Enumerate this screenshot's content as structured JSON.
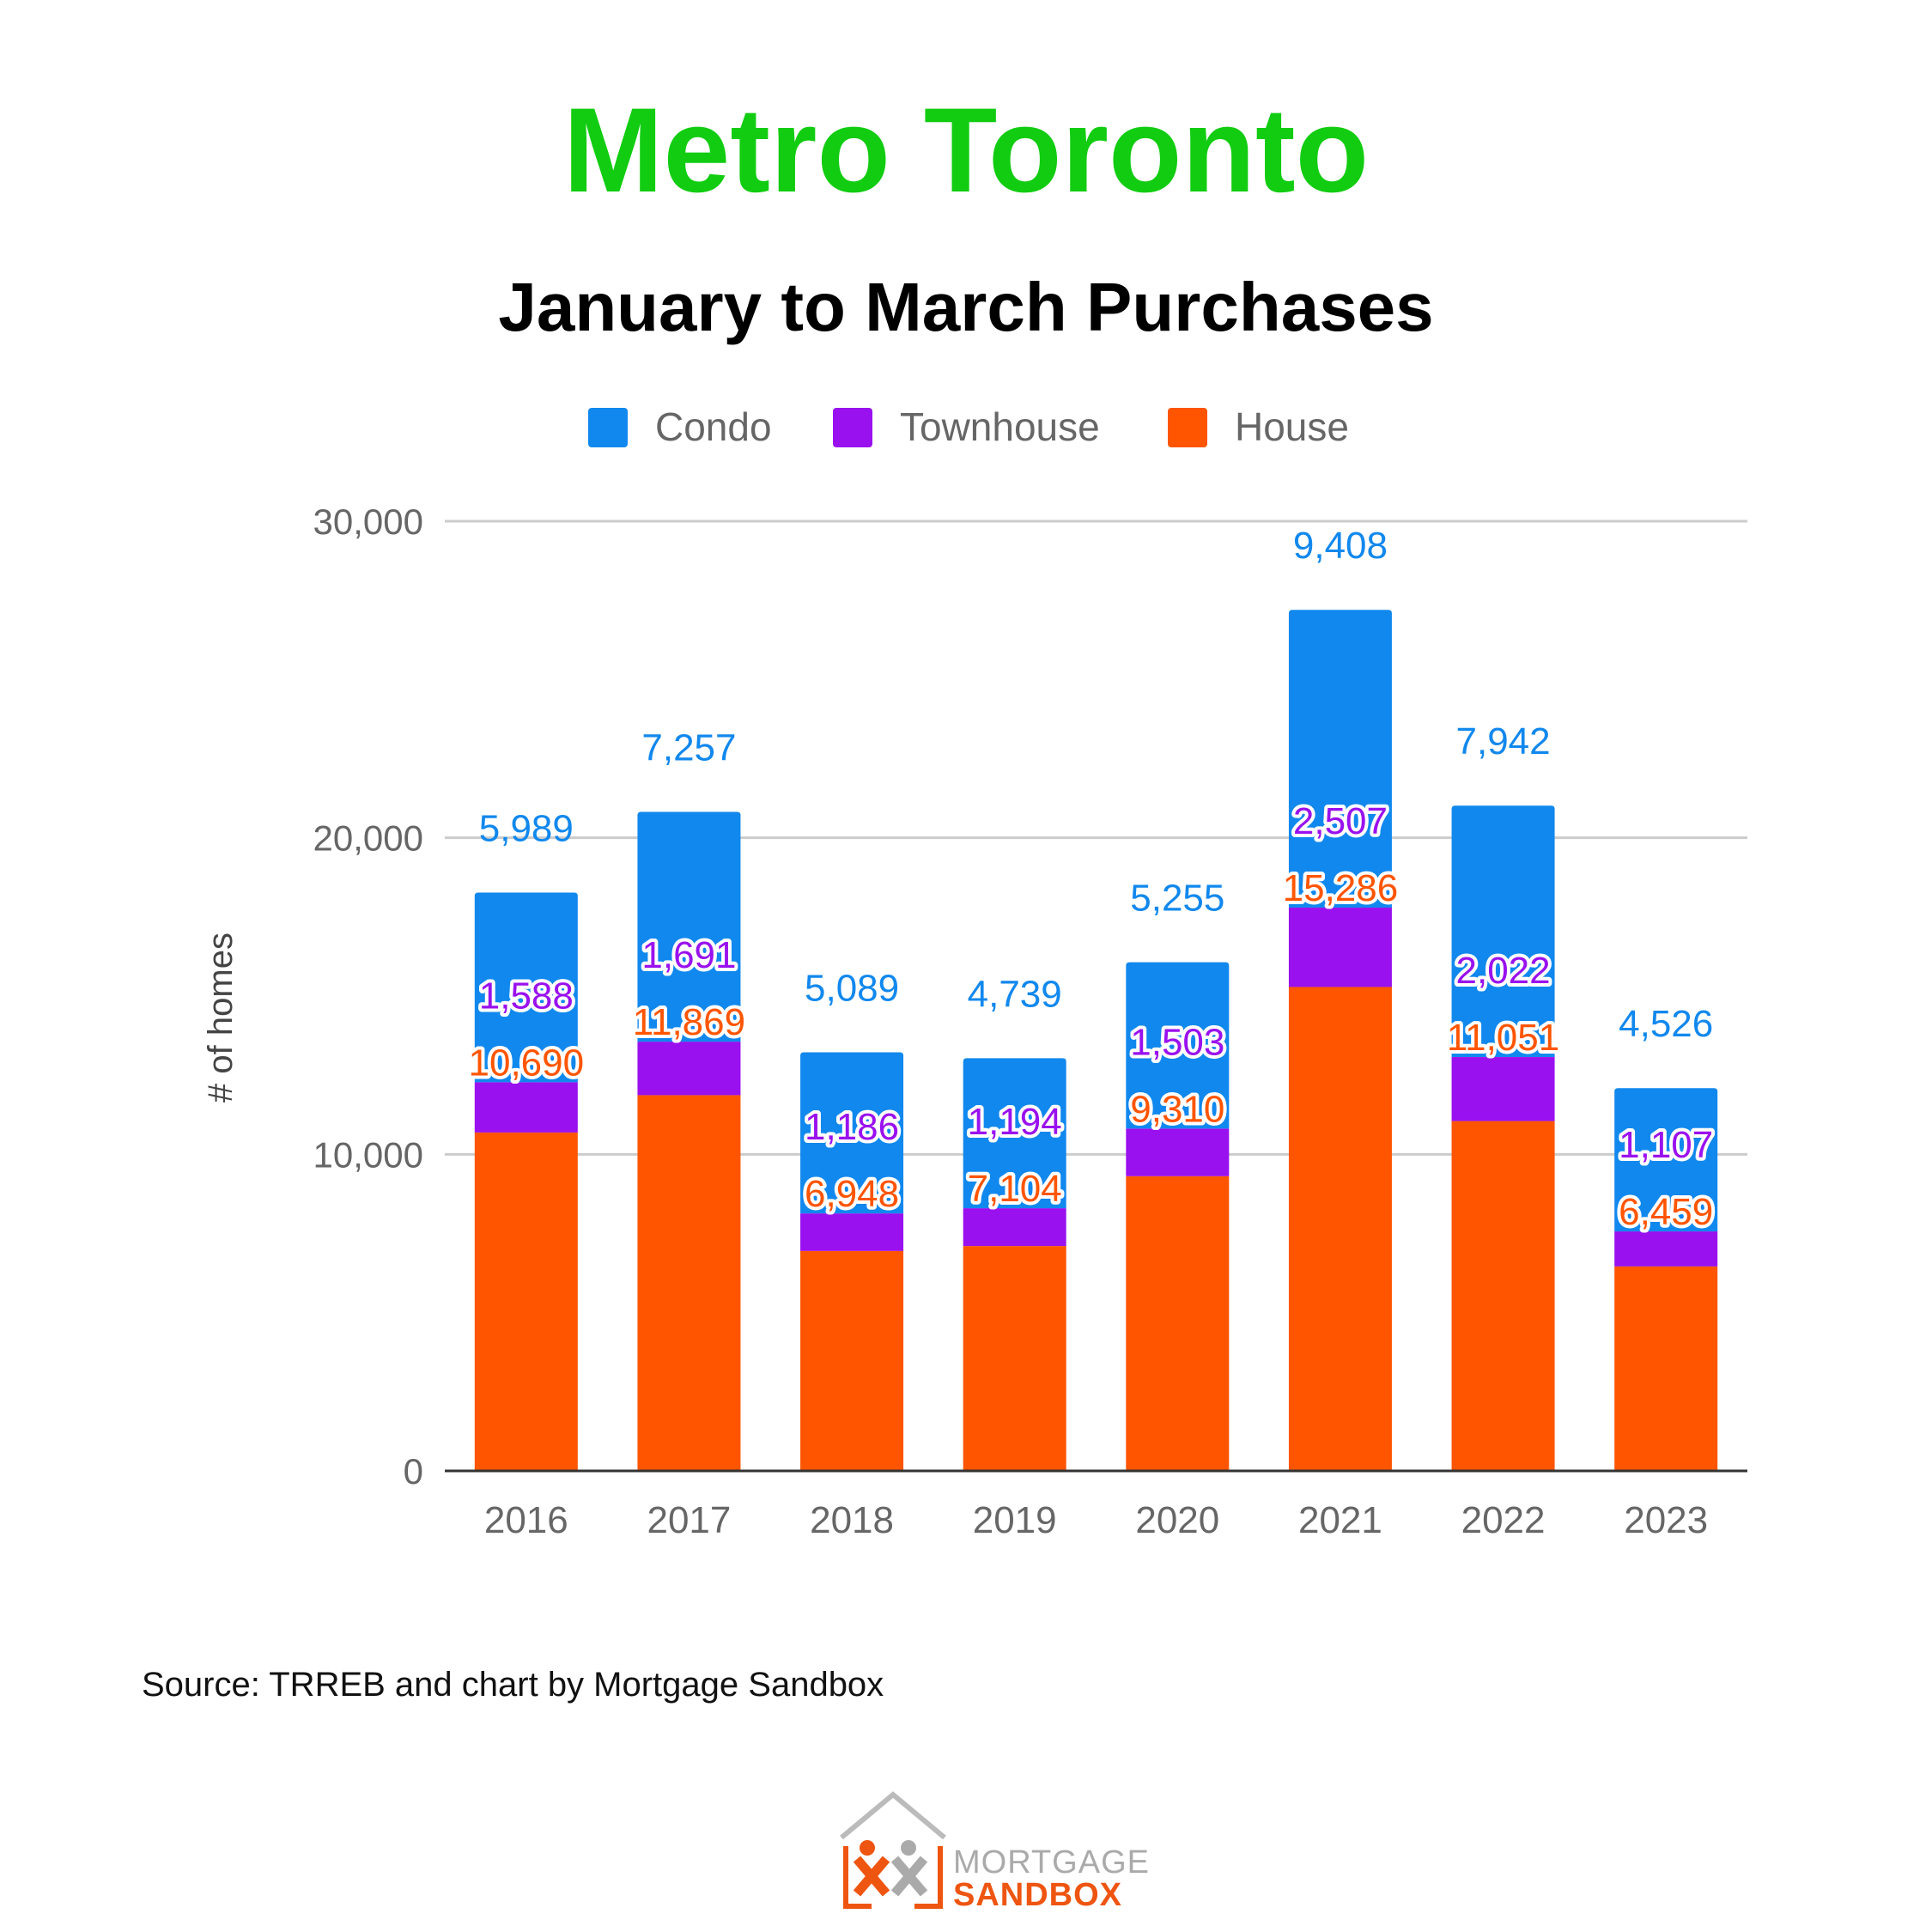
{
  "chart_data": {
    "type": "bar",
    "stacked": true,
    "title": "Metro Toronto",
    "subtitle": "January to March Purchases",
    "ylabel": "# of homes",
    "xlabel": "",
    "ylim": [
      0,
      30000
    ],
    "yticks": [
      0,
      10000,
      20000,
      30000
    ],
    "ytick_labels": [
      "0",
      "10,000",
      "20,000",
      "30,000"
    ],
    "grid": true,
    "legend_position": "top",
    "categories": [
      "2016",
      "2017",
      "2018",
      "2019",
      "2020",
      "2021",
      "2022",
      "2023"
    ],
    "series": [
      {
        "name": "House",
        "color": "#ff5500",
        "values": [
          10690,
          11869,
          6948,
          7104,
          9310,
          15286,
          11051,
          6459
        ],
        "labels": [
          "10,690",
          "11,869",
          "6,948",
          "7,104",
          "9,310",
          "15,286",
          "11,051",
          "6,459"
        ]
      },
      {
        "name": "Townhouse",
        "color": "#9911ee",
        "values": [
          1588,
          1691,
          1186,
          1194,
          1503,
          2507,
          2022,
          1107
        ],
        "labels": [
          "1,588",
          "1,691",
          "1,186",
          "1,194",
          "1,503",
          "2,507",
          "2,022",
          "1,107"
        ]
      },
      {
        "name": "Condo",
        "color": "#1188ee",
        "values": [
          5989,
          7257,
          5089,
          4739,
          5255,
          9408,
          7942,
          4526
        ],
        "labels": [
          "5,989",
          "7,257",
          "5,089",
          "4,739",
          "5,255",
          "9,408",
          "7,942",
          "4,526"
        ]
      }
    ],
    "legend_order": [
      "Condo",
      "Townhouse",
      "House"
    ]
  },
  "footer": {
    "source": "Source: TRREB and chart by Mortgage Sandbox"
  },
  "logo": {
    "line1": "MORTGAGE",
    "line2": "SANDBOX"
  }
}
